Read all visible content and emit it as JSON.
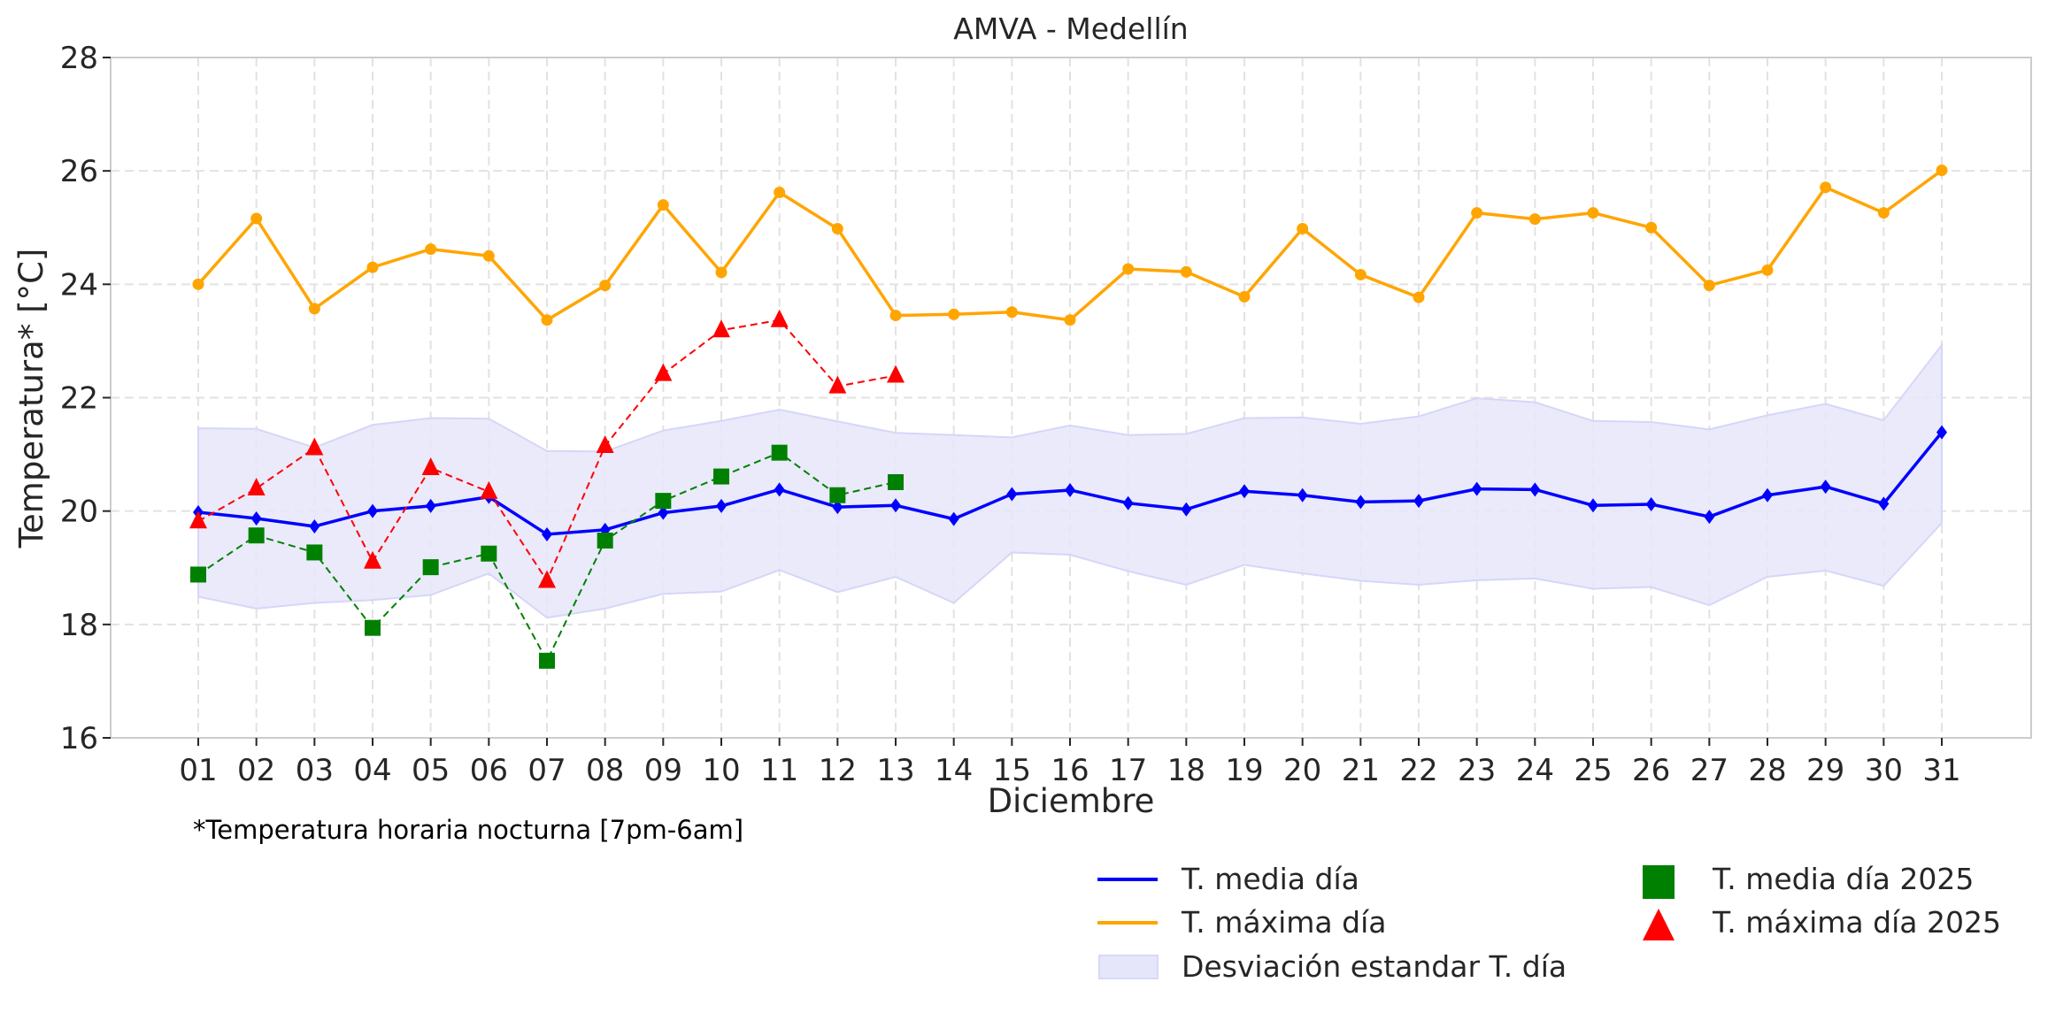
{
  "chart_data": {
    "type": "line",
    "title": "AMVA - Medellín",
    "xlabel": "Diciembre",
    "ylabel": "Temperatura* [°C]",
    "note": "*Temperatura horaria nocturna [7pm-6am]",
    "ylim": [
      16,
      28
    ],
    "yticks": [
      16,
      18,
      20,
      22,
      24,
      26,
      28
    ],
    "grid": true,
    "legend_position": "bottom-right",
    "categories": [
      "01",
      "02",
      "03",
      "04",
      "05",
      "06",
      "07",
      "08",
      "09",
      "10",
      "11",
      "12",
      "13",
      "14",
      "15",
      "16",
      "17",
      "18",
      "19",
      "20",
      "21",
      "22",
      "23",
      "24",
      "25",
      "26",
      "27",
      "28",
      "29",
      "30",
      "31"
    ],
    "series": [
      {
        "name": "T. media día",
        "kind": "line",
        "color": "#0000ff",
        "marker": "diamond",
        "values": [
          19.98,
          19.87,
          19.73,
          20.0,
          20.09,
          20.25,
          19.59,
          19.67,
          19.97,
          20.09,
          20.38,
          20.07,
          20.1,
          19.86,
          20.3,
          20.37,
          20.14,
          20.03,
          20.35,
          20.28,
          20.16,
          20.18,
          20.39,
          20.38,
          20.1,
          20.12,
          19.9,
          20.28,
          20.43,
          20.13,
          21.39
        ]
      },
      {
        "name": "T. máxima día",
        "kind": "line",
        "color": "#ffa500",
        "marker": "circle",
        "values": [
          24.0,
          25.16,
          23.57,
          24.3,
          24.62,
          24.5,
          23.37,
          23.98,
          25.4,
          24.21,
          25.62,
          24.98,
          23.45,
          23.47,
          23.51,
          23.37,
          24.27,
          24.22,
          23.78,
          24.98,
          24.17,
          23.77,
          25.26,
          25.15,
          25.26,
          25.0,
          23.98,
          24.25,
          25.71,
          25.26,
          26.01
        ]
      },
      {
        "name": "Desviación estandar T. día",
        "kind": "band",
        "color": "#e6e6fa",
        "upper": [
          21.46,
          21.45,
          21.12,
          21.52,
          21.64,
          21.63,
          21.06,
          21.05,
          21.42,
          21.59,
          21.79,
          21.58,
          21.38,
          21.34,
          21.3,
          21.51,
          21.34,
          21.36,
          21.64,
          21.65,
          21.54,
          21.67,
          21.99,
          21.92,
          21.59,
          21.57,
          21.44,
          21.69,
          21.89,
          21.6,
          22.93
        ],
        "lower": [
          18.49,
          18.28,
          18.38,
          18.43,
          18.52,
          18.9,
          18.12,
          18.28,
          18.54,
          18.58,
          18.96,
          18.57,
          18.84,
          18.38,
          19.27,
          19.23,
          18.94,
          18.7,
          19.05,
          18.9,
          18.77,
          18.7,
          18.78,
          18.81,
          18.63,
          18.66,
          18.34,
          18.84,
          18.95,
          18.68,
          19.79
        ]
      },
      {
        "name": "T. media día 2025",
        "kind": "dashed-markers",
        "color": "#008000",
        "marker": "square",
        "values": [
          18.88,
          19.57,
          19.27,
          17.94,
          19.01,
          19.25,
          17.36,
          19.48,
          20.18,
          20.61,
          21.03,
          20.28,
          20.51
        ]
      },
      {
        "name": "T. máxima día 2025",
        "kind": "dashed-markers",
        "color": "#ff0000",
        "marker": "triangle",
        "values": [
          19.82,
          20.4,
          21.11,
          19.11,
          20.76,
          20.34,
          18.77,
          21.15,
          22.42,
          23.19,
          23.37,
          22.2,
          22.39
        ]
      }
    ]
  },
  "legend": {
    "col1": [
      "T. media día",
      "T. máxima día",
      "Desviación estandar T. día"
    ],
    "col2": [
      "T. media día 2025",
      "T. máxima día 2025"
    ]
  }
}
